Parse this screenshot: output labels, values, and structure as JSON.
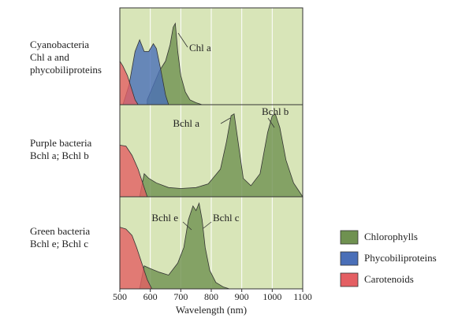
{
  "chart_data": {
    "type": "area",
    "xlabel": "Wavelength (nm)",
    "xlim": [
      500,
      1100
    ],
    "xticks": [
      500,
      600,
      700,
      800,
      900,
      1000,
      1100
    ],
    "grid": true,
    "legend": [
      {
        "name": "Chlorophylls",
        "color": "#6f9150"
      },
      {
        "name": "Phycobiliproteins",
        "color": "#4a6fb8"
      },
      {
        "name": "Carotenoids",
        "color": "#e45f63"
      }
    ],
    "panels": [
      {
        "label": [
          "Cyanobacteria",
          "Chl a and",
          "phycobiliproteins"
        ],
        "annotations": [
          "Chl a"
        ],
        "series": [
          {
            "color": "#6f9150",
            "x": [
              590,
              610,
              630,
              650,
              665,
              675,
              682,
              690,
              700,
              715,
              730,
              750,
              770
            ],
            "values": [
              0.05,
              0.2,
              0.35,
              0.45,
              0.62,
              0.8,
              0.84,
              0.55,
              0.3,
              0.13,
              0.05,
              0.02,
              0
            ]
          },
          {
            "color": "#4a6fb8",
            "x": [
              510,
              530,
              550,
              565,
              580,
              595,
              610,
              620,
              635,
              650,
              660
            ],
            "values": [
              0,
              0.2,
              0.55,
              0.67,
              0.55,
              0.55,
              0.63,
              0.58,
              0.35,
              0.1,
              0
            ]
          },
          {
            "color": "#e45f63",
            "x": [
              500,
              510,
              525,
              540,
              550,
              560
            ],
            "values": [
              0.45,
              0.4,
              0.3,
              0.15,
              0.05,
              0
            ]
          }
        ]
      },
      {
        "label": [
          "Purple bacteria",
          "Bchl a; Bchl b"
        ],
        "annotations": [
          "Bchl a",
          "Bchl b"
        ],
        "series": [
          {
            "color": "#6f9150",
            "x": [
              565,
              580,
              595,
              620,
              660,
              700,
              750,
              790,
              805,
              830,
              850,
              865,
              875,
              890,
              905,
              930,
              960,
              985,
              1000,
              1010,
              1025,
              1045,
              1070,
              1090,
              1100
            ],
            "values": [
              0,
              0.25,
              0.2,
              0.15,
              0.1,
              0.09,
              0.1,
              0.14,
              0.2,
              0.3,
              0.6,
              0.88,
              0.9,
              0.55,
              0.2,
              0.12,
              0.25,
              0.7,
              0.88,
              0.9,
              0.75,
              0.4,
              0.15,
              0.05,
              0
            ]
          },
          {
            "color": "#e45f63",
            "x": [
              500,
              520,
              540,
              560,
              575,
              590
            ],
            "values": [
              0.56,
              0.55,
              0.45,
              0.3,
              0.15,
              0
            ]
          }
        ]
      },
      {
        "label": [
          "Green bacteria",
          "Bchl e; Bchl c"
        ],
        "annotations": [
          "Bchl e",
          "Bchl c"
        ],
        "series": [
          {
            "color": "#6f9150",
            "x": [
              565,
              580,
              600,
              630,
              660,
              690,
              710,
              725,
              740,
              750,
              760,
              770,
              780,
              795,
              815,
              840,
              860
            ],
            "values": [
              0,
              0.25,
              0.22,
              0.18,
              0.15,
              0.28,
              0.45,
              0.75,
              0.9,
              0.85,
              0.93,
              0.75,
              0.45,
              0.2,
              0.07,
              0.02,
              0
            ]
          },
          {
            "color": "#e45f63",
            "x": [
              500,
              520,
              540,
              555,
              570,
              590,
              605
            ],
            "values": [
              0.67,
              0.65,
              0.58,
              0.45,
              0.3,
              0.1,
              0
            ]
          }
        ]
      }
    ]
  }
}
